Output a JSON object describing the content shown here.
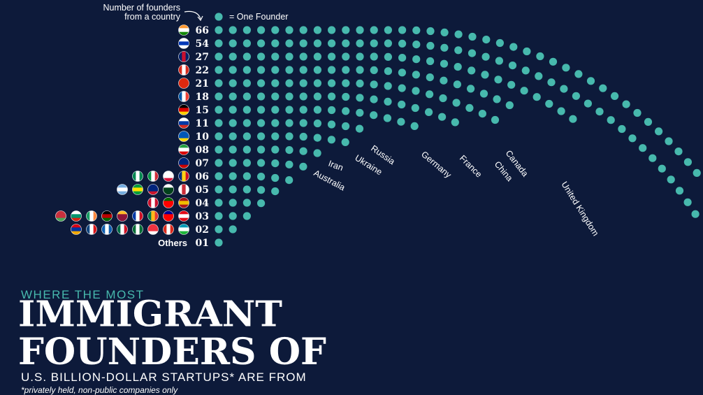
{
  "legend": {
    "axis_note_line1": "Number of founders",
    "axis_note_line2": "from a country",
    "dot_key": "= One Founder"
  },
  "title": {
    "kicker": "WHERE THE MOST",
    "line1": "IMMIGRANT",
    "line2": "FOUNDERS OF",
    "subtitle": "U.S. BILLION-DOLLAR STARTUPS* ARE FROM",
    "footnote": "*privately held, non-public companies only"
  },
  "colors": {
    "background": "#0d1a3a",
    "dot": "#47b9ad",
    "text": "#ffffff",
    "accent": "#47b9ad"
  },
  "chart_data": {
    "type": "bar",
    "unit": "One Founder per dot",
    "rows": [
      {
        "value_label": "66",
        "value": 66,
        "country": "India",
        "flags": [
          "india-flag"
        ]
      },
      {
        "value_label": "54",
        "value": 54,
        "country": "Israel",
        "flags": [
          "israel-flag"
        ]
      },
      {
        "value_label": "27",
        "value": 27,
        "country": "United Kingdom",
        "flags": [
          "uk-flag"
        ]
      },
      {
        "value_label": "22",
        "value": 22,
        "country": "Canada",
        "flags": [
          "canada-flag"
        ]
      },
      {
        "value_label": "21",
        "value": 21,
        "country": "China",
        "flags": [
          "china-flag"
        ]
      },
      {
        "value_label": "18",
        "value": 18,
        "country": "France",
        "flags": [
          "france-flag"
        ]
      },
      {
        "value_label": "15",
        "value": 15,
        "country": "Germany",
        "flags": [
          "germany-flag"
        ]
      },
      {
        "value_label": "11",
        "value": 11,
        "country": "Russia",
        "flags": [
          "russia-flag"
        ]
      },
      {
        "value_label": "10",
        "value": 10,
        "country": "Ukraine",
        "flags": [
          "ukraine-flag"
        ]
      },
      {
        "value_label": "08",
        "value": 8,
        "country": "Iran",
        "flags": [
          "iran-flag"
        ]
      },
      {
        "value_label": "07",
        "value": 7,
        "country": "Australia",
        "flags": [
          "australia-flag"
        ]
      },
      {
        "value_label": "06",
        "value": 6,
        "country": "",
        "flags": [
          "nigeria-flag",
          "italy-flag",
          "poland-flag",
          "romania-flag"
        ]
      },
      {
        "value_label": "05",
        "value": 5,
        "country": "",
        "flags": [
          "argentina-flag",
          "brazil-flag",
          "new-zealand-flag",
          "pakistan-flag",
          "south-korea-flag"
        ]
      },
      {
        "value_label": "04",
        "value": 4,
        "country": "",
        "flags": [
          "denmark-flag",
          "portugal-flag",
          "spain-flag"
        ]
      },
      {
        "value_label": "03",
        "value": 3,
        "country": "",
        "flags": [
          "belarus-flag",
          "bulgaria-flag",
          "ireland-flag",
          "kenya-flag",
          "sri-lanka-flag",
          "philippines-flag",
          "south-africa-flag",
          "taiwan-flag",
          "turkey-flag"
        ]
      },
      {
        "value_label": "02",
        "value": 2,
        "country": "",
        "flags": [
          "armenia-flag",
          "czech-republic-flag",
          "greece-flag",
          "mexico-flag",
          "saudi-arabia-flag",
          "singapore-flag",
          "switzerland-flag",
          "uzbekistan-flag"
        ]
      },
      {
        "value_label": "01",
        "value": 1,
        "country": "",
        "row_label": "Others",
        "flags": []
      }
    ],
    "country_labels_visible": [
      "United Kingdom",
      "Canada",
      "China",
      "France",
      "Germany",
      "Russia",
      "Ukraine",
      "Iran",
      "Australia"
    ]
  }
}
